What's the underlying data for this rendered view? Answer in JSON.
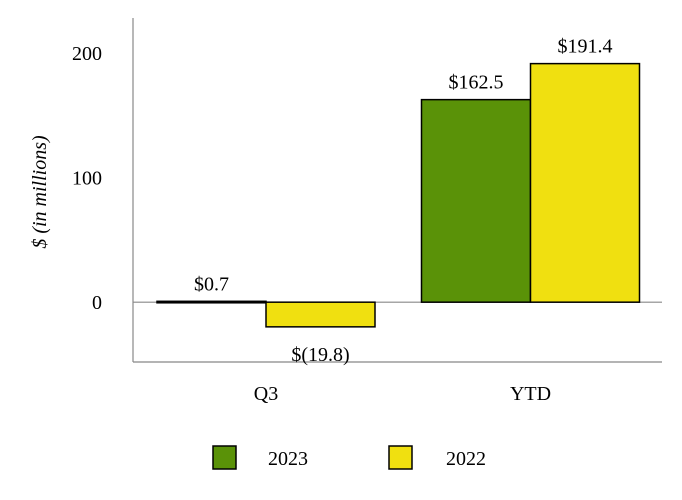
{
  "chart_data": {
    "type": "bar",
    "ylabel": "$ (in millions)",
    "xlabel": "",
    "categories": [
      "Q3",
      "YTD"
    ],
    "ylim": [
      -48,
      228
    ],
    "yticks": [
      0,
      100,
      200
    ],
    "series": [
      {
        "name": "2023",
        "color": "#5a9208",
        "values": [
          0.7,
          162.5
        ],
        "labels": [
          "$0.7",
          "$162.5"
        ]
      },
      {
        "name": "2022",
        "color": "#f0e010",
        "values": [
          -19.8,
          191.4
        ],
        "labels": [
          "$(19.8)",
          "$191.4"
        ]
      }
    ],
    "legend_position": "bottom",
    "grid": false
  }
}
